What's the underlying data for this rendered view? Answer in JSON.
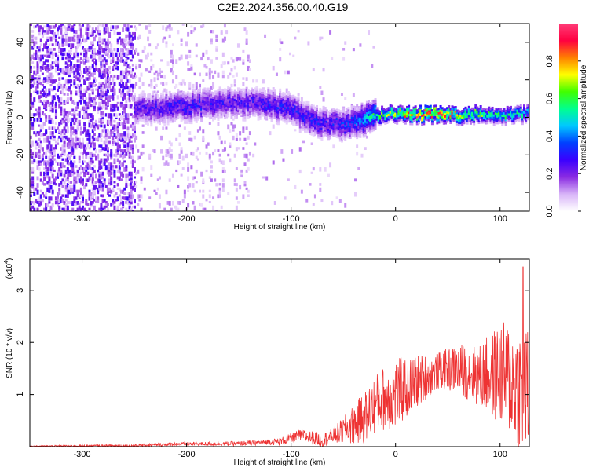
{
  "title": "C2E2.2024.356.00.40.G19",
  "chart_data": [
    {
      "type": "heatmap",
      "xlabel": "Height of straight line (km)",
      "ylabel": "Frequency (Hz)",
      "xlim": [
        -350,
        128
      ],
      "ylim": [
        -50,
        50
      ],
      "xticks": [
        -300,
        -200,
        -100,
        0,
        100
      ],
      "yticks": [
        -40,
        -20,
        0,
        20,
        40
      ],
      "colorbar": {
        "label": "Normalized spectral amplitude",
        "range": [
          0,
          1
        ],
        "ticks": [
          "0.0",
          "0.2",
          "0.4",
          "0.6",
          "0.8"
        ],
        "colormap": [
          "#ffffff",
          "#d8b4f8",
          "#8a2be2",
          "#3a00ff",
          "#0040ff",
          "#00c8ff",
          "#00ff90",
          "#40ff00",
          "#ffff00",
          "#ff8000",
          "#ff0040",
          "#ff3c78"
        ]
      },
      "ridge": {
        "x": [
          -250,
          -200,
          -150,
          -120,
          -100,
          -80,
          -60,
          -40,
          -20,
          0,
          20,
          40,
          60,
          80,
          100,
          125
        ],
        "frequency": [
          4,
          6,
          8,
          7,
          4,
          -2,
          -4,
          -3,
          1,
          2,
          1.5,
          1.5,
          1,
          2,
          1,
          2
        ],
        "amplitude": [
          0.25,
          0.3,
          0.25,
          0.3,
          0.3,
          0.3,
          0.3,
          0.35,
          0.55,
          0.7,
          0.85,
          0.9,
          0.7,
          0.6,
          0.55,
          0.5
        ]
      }
    },
    {
      "type": "line",
      "xlabel": "Height of straight line (km)",
      "ylabel": "SNR (10 * v/v)",
      "scale_label": "(x10",
      "scale_exp": "4",
      "xlim": [
        -350,
        128
      ],
      "ylim": [
        0,
        3.6
      ],
      "xticks": [
        -300,
        -200,
        -100,
        0,
        100
      ],
      "yticks": [
        1,
        2,
        3
      ],
      "color": "#ee3333",
      "envelope": {
        "x": [
          -350,
          -250,
          -210,
          -150,
          -110,
          -90,
          -70,
          -50,
          -30,
          -20,
          -10,
          0,
          20,
          40,
          60,
          80,
          100,
          110,
          120,
          125,
          128
        ],
        "y": [
          0.01,
          0.02,
          0.05,
          0.06,
          0.1,
          0.22,
          0.12,
          0.3,
          0.55,
          0.8,
          0.95,
          1.0,
          1.25,
          1.45,
          1.5,
          1.35,
          1.4,
          1.3,
          1.1,
          1.05,
          1.0
        ]
      },
      "spread": {
        "x": [
          -350,
          -120,
          -90,
          -60,
          -30,
          0,
          40,
          80,
          100,
          128
        ],
        "y": [
          0.01,
          0.05,
          0.12,
          0.15,
          0.5,
          0.7,
          0.35,
          0.6,
          1.0,
          1.3
        ]
      },
      "max_point": {
        "x": 122,
        "y": 3.45
      }
    }
  ]
}
